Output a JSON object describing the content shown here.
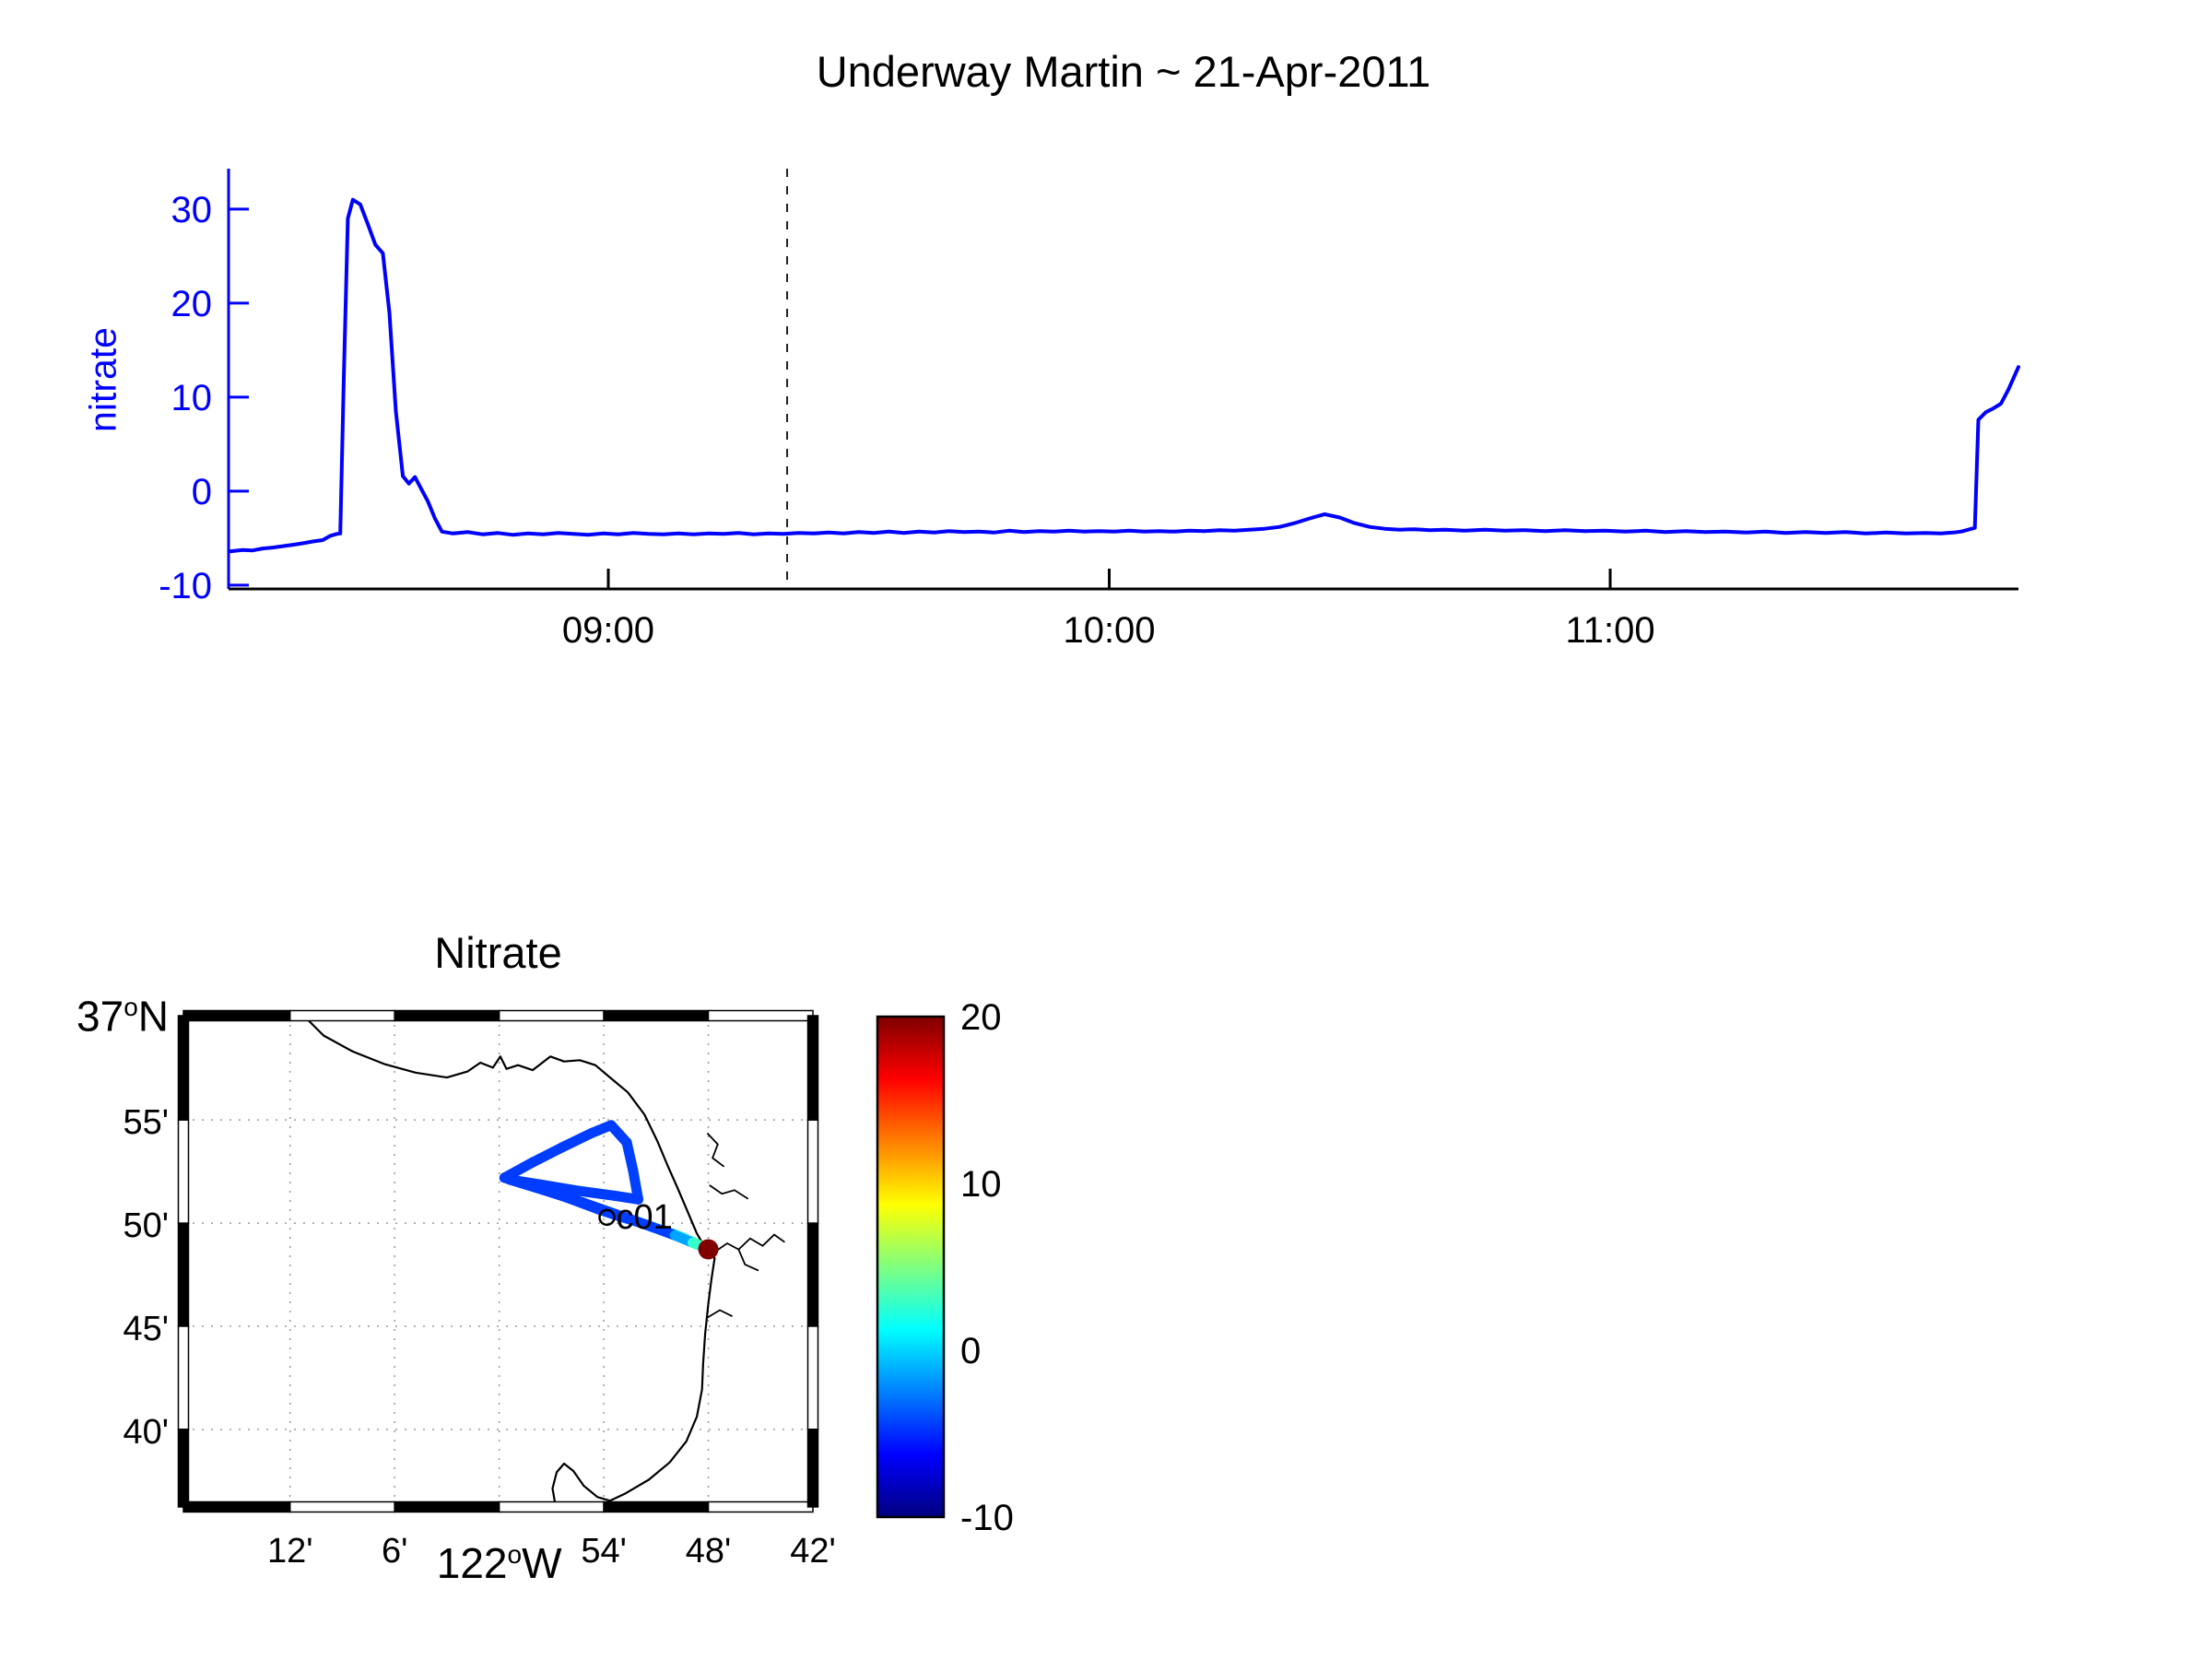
{
  "figure": {
    "background": "#ffffff"
  },
  "chart_data": [
    {
      "type": "line",
      "title": "Underway Martin ~ 21-Apr-2011",
      "ylabel": "nitrate",
      "x_unit": "time_of_day_hours",
      "xlim": [
        8.242,
        11.815
      ],
      "ylim": [
        -10.4,
        34.3
      ],
      "yticks": [
        -10,
        0,
        10,
        20,
        30
      ],
      "xticks": [
        {
          "value": 9,
          "label": "09:00"
        },
        {
          "value": 10,
          "label": "10:00"
        },
        {
          "value": 11,
          "label": "11:00"
        }
      ],
      "vline_x": 9.357,
      "axis_color": "#0000ff",
      "line_color": "#0000ff",
      "series": [
        {
          "name": "nitrate",
          "points": [
            [
              8.245,
              -6.4
            ],
            [
              8.27,
              -6.25
            ],
            [
              8.29,
              -6.3
            ],
            [
              8.31,
              -6.1
            ],
            [
              8.33,
              -6.0
            ],
            [
              8.35,
              -5.85
            ],
            [
              8.37,
              -5.7
            ],
            [
              8.39,
              -5.55
            ],
            [
              8.41,
              -5.35
            ],
            [
              8.43,
              -5.2
            ],
            [
              8.445,
              -4.75
            ],
            [
              8.458,
              -4.55
            ],
            [
              8.465,
              -4.5
            ],
            [
              8.472,
              12
            ],
            [
              8.48,
              29
            ],
            [
              8.49,
              31
            ],
            [
              8.505,
              30.5
            ],
            [
              8.52,
              28.4
            ],
            [
              8.535,
              26.2
            ],
            [
              8.55,
              25.3
            ],
            [
              8.563,
              19
            ],
            [
              8.576,
              8.5
            ],
            [
              8.59,
              1.6
            ],
            [
              8.602,
              0.8
            ],
            [
              8.614,
              1.5
            ],
            [
              8.627,
              0.2
            ],
            [
              8.64,
              -1.1
            ],
            [
              8.654,
              -2.9
            ],
            [
              8.668,
              -4.3
            ],
            [
              8.69,
              -4.5
            ],
            [
              8.72,
              -4.35
            ],
            [
              8.75,
              -4.6
            ],
            [
              8.78,
              -4.45
            ],
            [
              8.81,
              -4.65
            ],
            [
              8.84,
              -4.5
            ],
            [
              8.87,
              -4.6
            ],
            [
              8.9,
              -4.45
            ],
            [
              8.93,
              -4.55
            ],
            [
              8.96,
              -4.65
            ],
            [
              8.99,
              -4.5
            ],
            [
              9.02,
              -4.6
            ],
            [
              9.05,
              -4.45
            ],
            [
              9.08,
              -4.55
            ],
            [
              9.11,
              -4.6
            ],
            [
              9.14,
              -4.5
            ],
            [
              9.17,
              -4.6
            ],
            [
              9.2,
              -4.5
            ],
            [
              9.23,
              -4.55
            ],
            [
              9.26,
              -4.45
            ],
            [
              9.29,
              -4.6
            ],
            [
              9.32,
              -4.5
            ],
            [
              9.35,
              -4.55
            ],
            [
              9.38,
              -4.45
            ],
            [
              9.41,
              -4.5
            ],
            [
              9.44,
              -4.4
            ],
            [
              9.47,
              -4.5
            ],
            [
              9.5,
              -4.35
            ],
            [
              9.53,
              -4.45
            ],
            [
              9.56,
              -4.3
            ],
            [
              9.59,
              -4.45
            ],
            [
              9.62,
              -4.3
            ],
            [
              9.65,
              -4.4
            ],
            [
              9.68,
              -4.25
            ],
            [
              9.71,
              -4.35
            ],
            [
              9.74,
              -4.3
            ],
            [
              9.77,
              -4.4
            ],
            [
              9.8,
              -4.2
            ],
            [
              9.83,
              -4.35
            ],
            [
              9.86,
              -4.25
            ],
            [
              9.89,
              -4.3
            ],
            [
              9.92,
              -4.2
            ],
            [
              9.95,
              -4.3
            ],
            [
              9.98,
              -4.25
            ],
            [
              10.01,
              -4.3
            ],
            [
              10.04,
              -4.2
            ],
            [
              10.07,
              -4.3
            ],
            [
              10.1,
              -4.25
            ],
            [
              10.13,
              -4.3
            ],
            [
              10.16,
              -4.2
            ],
            [
              10.19,
              -4.25
            ],
            [
              10.22,
              -4.15
            ],
            [
              10.25,
              -4.2
            ],
            [
              10.28,
              -4.1
            ],
            [
              10.31,
              -4.0
            ],
            [
              10.34,
              -3.8
            ],
            [
              10.37,
              -3.4
            ],
            [
              10.4,
              -2.9
            ],
            [
              10.43,
              -2.45
            ],
            [
              10.46,
              -2.8
            ],
            [
              10.49,
              -3.4
            ],
            [
              10.52,
              -3.8
            ],
            [
              10.55,
              -4.0
            ],
            [
              10.58,
              -4.1
            ],
            [
              10.61,
              -4.05
            ],
            [
              10.64,
              -4.15
            ],
            [
              10.67,
              -4.1
            ],
            [
              10.71,
              -4.2
            ],
            [
              10.75,
              -4.1
            ],
            [
              10.79,
              -4.2
            ],
            [
              10.83,
              -4.15
            ],
            [
              10.87,
              -4.25
            ],
            [
              10.91,
              -4.15
            ],
            [
              10.95,
              -4.25
            ],
            [
              10.99,
              -4.2
            ],
            [
              11.03,
              -4.3
            ],
            [
              11.07,
              -4.2
            ],
            [
              11.11,
              -4.35
            ],
            [
              11.15,
              -4.25
            ],
            [
              11.19,
              -4.35
            ],
            [
              11.23,
              -4.3
            ],
            [
              11.27,
              -4.4
            ],
            [
              11.31,
              -4.3
            ],
            [
              11.35,
              -4.45
            ],
            [
              11.39,
              -4.35
            ],
            [
              11.43,
              -4.45
            ],
            [
              11.47,
              -4.35
            ],
            [
              11.51,
              -4.5
            ],
            [
              11.55,
              -4.4
            ],
            [
              11.59,
              -4.5
            ],
            [
              11.63,
              -4.45
            ],
            [
              11.66,
              -4.5
            ],
            [
              11.685,
              -4.4
            ],
            [
              11.7,
              -4.3
            ],
            [
              11.715,
              -4.1
            ],
            [
              11.728,
              -3.9
            ],
            [
              11.735,
              7.6
            ],
            [
              11.75,
              8.4
            ],
            [
              11.765,
              8.8
            ],
            [
              11.78,
              9.3
            ],
            [
              11.795,
              10.8
            ],
            [
              11.815,
              13.2
            ]
          ]
        }
      ]
    },
    {
      "type": "scatter",
      "subtype": "map-track",
      "title": "Nitrate",
      "colormap": "jet",
      "lon_range": [
        -122.302,
        -121.7
      ],
      "lat_range": [
        36.604,
        37.001
      ],
      "lon_ticks": [
        {
          "lon": -122.2,
          "label": "12'"
        },
        {
          "lon": -122.1,
          "label": "6'"
        },
        {
          "lon": -122.0,
          "label": "122°W",
          "major": true
        },
        {
          "lon": -121.9,
          "label": "54'"
        },
        {
          "lon": -121.8,
          "label": "48'"
        },
        {
          "lon": -121.7,
          "label": "42'"
        }
      ],
      "lat_ticks": [
        {
          "lat": 37.0,
          "label": "37°N",
          "major": true
        },
        {
          "lat": 36.9167,
          "label": "55'"
        },
        {
          "lat": 36.8333,
          "label": "50'"
        },
        {
          "lat": 36.75,
          "label": "45'"
        },
        {
          "lat": 36.6667,
          "label": "40'"
        }
      ],
      "station": {
        "label": "c01",
        "lon": -121.897,
        "lat": 36.838
      },
      "track": {
        "lon": [
          -121.801,
          -121.812,
          -121.824,
          -121.838,
          -121.853,
          -121.868,
          -121.884,
          -121.905,
          -121.94,
          -121.97,
          -121.995,
          -121.968,
          -121.94,
          -121.912,
          -121.893,
          -121.878,
          -121.872,
          -121.867,
          -121.89,
          -121.925,
          -121.96,
          -121.99,
          -121.955,
          -121.92,
          -121.885,
          -121.856,
          -121.832,
          -121.815,
          -121.804
        ],
        "lat": [
          36.8125,
          36.817,
          36.8215,
          36.826,
          36.83,
          36.8345,
          36.8385,
          36.8445,
          36.8555,
          36.8635,
          36.87,
          36.8825,
          36.8945,
          36.906,
          36.9125,
          36.8985,
          36.876,
          36.8525,
          36.8555,
          36.8595,
          36.8645,
          36.8685,
          36.8595,
          36.85,
          36.8395,
          36.831,
          36.8235,
          36.8175,
          36.8135
        ],
        "nitrate": [
          15,
          5,
          1.5,
          0.2,
          -0.8,
          -2.2,
          -3.6,
          -4.4,
          -4.5,
          -4.5,
          -4.5,
          -4.5,
          -4.4,
          -4.5,
          -4.4,
          -4.5,
          -4.3,
          -4.4,
          -4.5,
          -4.4,
          -4.5,
          -4.5,
          -4.4,
          -4.5,
          -4.4,
          -4.5,
          -4.3,
          1.5,
          4
        ]
      },
      "end_marker": {
        "lon": -121.8,
        "lat": 36.8122,
        "nitrate": 31
      },
      "coastline": [
        [
          -122.187,
          37.001
        ],
        [
          -122.168,
          36.985
        ],
        [
          -122.14,
          36.972
        ],
        [
          -122.11,
          36.962
        ],
        [
          -122.08,
          36.955
        ],
        [
          -122.05,
          36.951
        ],
        [
          -122.03,
          36.956
        ],
        [
          -122.018,
          36.963
        ],
        [
          -122.006,
          36.959
        ],
        [
          -121.999,
          36.968
        ],
        [
          -121.993,
          36.958
        ],
        [
          -121.982,
          36.961
        ],
        [
          -121.968,
          36.957
        ],
        [
          -121.951,
          36.968
        ],
        [
          -121.938,
          36.964
        ],
        [
          -121.923,
          36.965
        ],
        [
          -121.908,
          36.961
        ],
        [
          -121.894,
          36.951
        ],
        [
          -121.877,
          36.939
        ],
        [
          -121.861,
          36.921
        ],
        [
          -121.849,
          36.9
        ],
        [
          -121.839,
          36.88
        ],
        [
          -121.829,
          36.861
        ],
        [
          -121.819,
          36.841
        ],
        [
          -121.811,
          36.825
        ],
        [
          -121.802,
          36.812
        ],
        [
          -121.794,
          36.805
        ],
        [
          -121.797,
          36.788
        ],
        [
          -121.8,
          36.768
        ],
        [
          -121.803,
          36.744
        ],
        [
          -121.805,
          36.72
        ],
        [
          -121.806,
          36.699
        ],
        [
          -121.811,
          36.677
        ],
        [
          -121.821,
          36.657
        ],
        [
          -121.837,
          36.64
        ],
        [
          -121.857,
          36.626
        ],
        [
          -121.879,
          36.615
        ],
        [
          -121.894,
          36.609
        ],
        [
          -121.906,
          36.612
        ],
        [
          -121.919,
          36.621
        ],
        [
          -121.929,
          36.633
        ],
        [
          -121.938,
          36.639
        ],
        [
          -121.945,
          36.632
        ],
        [
          -121.949,
          36.619
        ],
        [
          -121.946,
          36.604
        ]
      ],
      "rivers": [
        [
          [
            -121.794,
            36.81
          ],
          [
            -121.782,
            36.817
          ],
          [
            -121.771,
            36.812
          ],
          [
            -121.76,
            36.821
          ],
          [
            -121.748,
            36.815
          ],
          [
            -121.737,
            36.824
          ],
          [
            -121.727,
            36.818
          ]
        ],
        [
          [
            -121.771,
            36.812
          ],
          [
            -121.765,
            36.8
          ],
          [
            -121.752,
            36.795
          ]
        ],
        [
          [
            -121.799,
            36.864
          ],
          [
            -121.787,
            36.857
          ],
          [
            -121.775,
            36.86
          ],
          [
            -121.762,
            36.853
          ]
        ],
        [
          [
            -121.801,
            36.906
          ],
          [
            -121.791,
            36.897
          ],
          [
            -121.796,
            36.886
          ],
          [
            -121.785,
            36.879
          ]
        ],
        [
          [
            -121.801,
            36.757
          ],
          [
            -121.789,
            36.763
          ],
          [
            -121.777,
            36.758
          ]
        ]
      ],
      "colorbar": {
        "min": -10,
        "max": 20,
        "ticks": [
          20,
          10,
          0,
          -10
        ]
      }
    }
  ]
}
